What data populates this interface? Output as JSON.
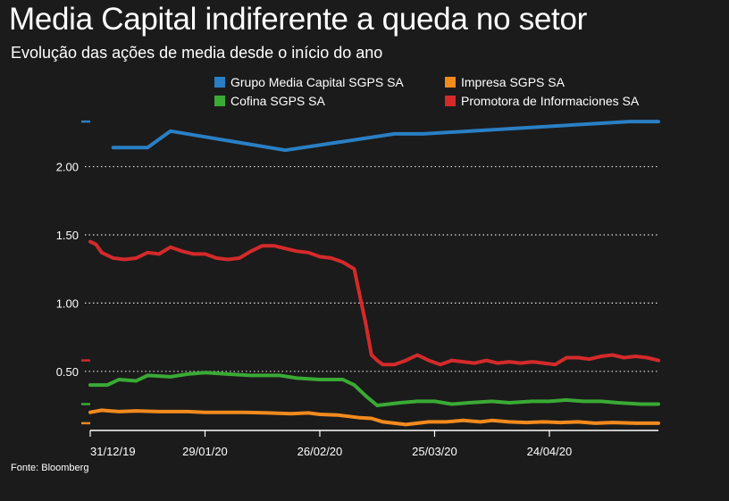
{
  "title": "Media Capital indiferente a queda no setor",
  "subtitle": "Evolução das ações de media desde o início do ano",
  "source": "Fonte: Bloomberg",
  "chart_data": {
    "type": "line",
    "title": "Media Capital indiferente a queda no setor",
    "subtitle": "Evolução das ações de media desde o início do ano",
    "xlabel": "",
    "ylabel": "",
    "x_ticks": [
      "31/12/19",
      "29/01/20",
      "26/02/20",
      "25/03/20",
      "24/04/20"
    ],
    "x_tick_index": [
      0,
      20,
      40,
      60,
      80
    ],
    "x_range": [
      0,
      99
    ],
    "ylim": [
      0.08,
      2.37
    ],
    "y_ticks": [
      {
        "value": 0.5,
        "label": "0.50"
      },
      {
        "value": 1.0,
        "label": "1.00"
      },
      {
        "value": 1.5,
        "label": "1.50"
      },
      {
        "value": 2.0,
        "label": "2.00"
      }
    ],
    "grid": "horizontal dotted",
    "legend_position": "top-right",
    "series": [
      {
        "name": "Grupo Media Capital SGPS SA",
        "color": "#2a7fc4",
        "points": [
          [
            4,
            2.14
          ],
          [
            10,
            2.14
          ],
          [
            14,
            2.26
          ],
          [
            34,
            2.12
          ],
          [
            53,
            2.24
          ],
          [
            58,
            2.24
          ],
          [
            94,
            2.33
          ],
          [
            99,
            2.33
          ]
        ]
      },
      {
        "name": "Impresa SGPS SA",
        "color": "#f28a1e",
        "points": [
          [
            0,
            0.2
          ],
          [
            2,
            0.215
          ],
          [
            5,
            0.205
          ],
          [
            8,
            0.21
          ],
          [
            12,
            0.205
          ],
          [
            17,
            0.205
          ],
          [
            20,
            0.2
          ],
          [
            23,
            0.2
          ],
          [
            27,
            0.2
          ],
          [
            31,
            0.195
          ],
          [
            35,
            0.19
          ],
          [
            38,
            0.195
          ],
          [
            40,
            0.185
          ],
          [
            43,
            0.18
          ],
          [
            45,
            0.17
          ],
          [
            47,
            0.16
          ],
          [
            49,
            0.155
          ],
          [
            51,
            0.13
          ],
          [
            53,
            0.12
          ],
          [
            55,
            0.11
          ],
          [
            57,
            0.12
          ],
          [
            59,
            0.13
          ],
          [
            62,
            0.13
          ],
          [
            65,
            0.14
          ],
          [
            68,
            0.13
          ],
          [
            70,
            0.14
          ],
          [
            73,
            0.13
          ],
          [
            76,
            0.125
          ],
          [
            79,
            0.13
          ],
          [
            82,
            0.125
          ],
          [
            85,
            0.13
          ],
          [
            88,
            0.12
          ],
          [
            91,
            0.125
          ],
          [
            95,
            0.12
          ],
          [
            99,
            0.12
          ]
        ]
      },
      {
        "name": "Cofina SGPS SA",
        "color": "#3aaa35",
        "points": [
          [
            0,
            0.4
          ],
          [
            3,
            0.4
          ],
          [
            5,
            0.44
          ],
          [
            8,
            0.43
          ],
          [
            10,
            0.47
          ],
          [
            14,
            0.46
          ],
          [
            17,
            0.48
          ],
          [
            20,
            0.49
          ],
          [
            24,
            0.48
          ],
          [
            28,
            0.47
          ],
          [
            33,
            0.47
          ],
          [
            36,
            0.45
          ],
          [
            40,
            0.44
          ],
          [
            44,
            0.44
          ],
          [
            46,
            0.4
          ],
          [
            48,
            0.32
          ],
          [
            50,
            0.25
          ],
          [
            52,
            0.26
          ],
          [
            54,
            0.27
          ],
          [
            57,
            0.28
          ],
          [
            60,
            0.28
          ],
          [
            63,
            0.26
          ],
          [
            66,
            0.27
          ],
          [
            70,
            0.28
          ],
          [
            73,
            0.27
          ],
          [
            77,
            0.28
          ],
          [
            80,
            0.28
          ],
          [
            83,
            0.29
          ],
          [
            86,
            0.28
          ],
          [
            89,
            0.28
          ],
          [
            92,
            0.27
          ],
          [
            96,
            0.26
          ],
          [
            99,
            0.26
          ]
        ]
      },
      {
        "name": "Promotora de Informaciones SA",
        "color": "#d42a2a",
        "points": [
          [
            0,
            1.45
          ],
          [
            1,
            1.43
          ],
          [
            2,
            1.37
          ],
          [
            4,
            1.33
          ],
          [
            6,
            1.32
          ],
          [
            8,
            1.33
          ],
          [
            10,
            1.37
          ],
          [
            12,
            1.36
          ],
          [
            14,
            1.41
          ],
          [
            16,
            1.38
          ],
          [
            18,
            1.36
          ],
          [
            20,
            1.36
          ],
          [
            22,
            1.33
          ],
          [
            24,
            1.32
          ],
          [
            26,
            1.33
          ],
          [
            28,
            1.38
          ],
          [
            30,
            1.42
          ],
          [
            32,
            1.42
          ],
          [
            34,
            1.4
          ],
          [
            36,
            1.38
          ],
          [
            38,
            1.37
          ],
          [
            40,
            1.34
          ],
          [
            42,
            1.33
          ],
          [
            44,
            1.3
          ],
          [
            46,
            1.25
          ],
          [
            47,
            1.05
          ],
          [
            48,
            0.85
          ],
          [
            49,
            0.62
          ],
          [
            50,
            0.58
          ],
          [
            51,
            0.55
          ],
          [
            53,
            0.55
          ],
          [
            55,
            0.58
          ],
          [
            57,
            0.62
          ],
          [
            59,
            0.58
          ],
          [
            61,
            0.55
          ],
          [
            63,
            0.58
          ],
          [
            65,
            0.57
          ],
          [
            67,
            0.56
          ],
          [
            69,
            0.58
          ],
          [
            71,
            0.56
          ],
          [
            73,
            0.57
          ],
          [
            75,
            0.56
          ],
          [
            77,
            0.57
          ],
          [
            79,
            0.56
          ],
          [
            81,
            0.55
          ],
          [
            83,
            0.6
          ],
          [
            85,
            0.6
          ],
          [
            87,
            0.59
          ],
          [
            89,
            0.61
          ],
          [
            91,
            0.62
          ],
          [
            93,
            0.6
          ],
          [
            95,
            0.61
          ],
          [
            97,
            0.6
          ],
          [
            99,
            0.58
          ]
        ]
      }
    ]
  }
}
